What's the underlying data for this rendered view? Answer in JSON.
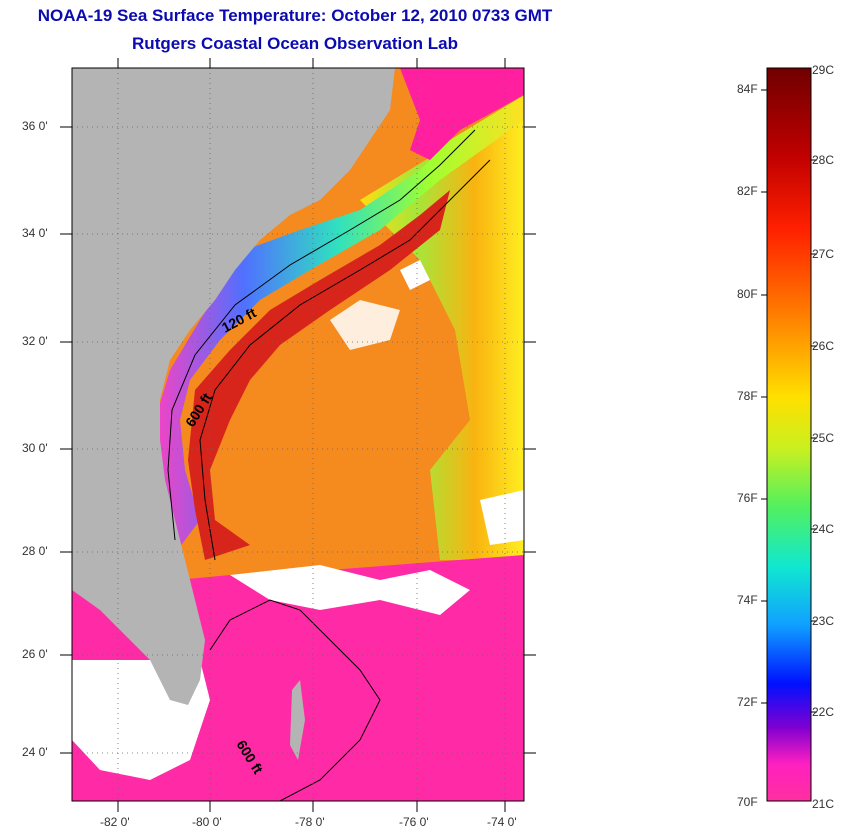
{
  "title": {
    "line1": "NOAA-19 Sea Surface Temperature:  October 12, 2010 0733 GMT",
    "line2": "Rutgers Coastal Ocean Observation Lab"
  },
  "map": {
    "lat_labels": [
      "36 0'",
      "34 0'",
      "32 0'",
      "30 0'",
      "28 0'",
      "26 0'",
      "24 0'"
    ],
    "lon_labels": [
      "-82 0'",
      "-80 0'",
      "-78 0'",
      "-76 0'",
      "-74 0'"
    ],
    "contour_labels": [
      "120 ft",
      "600 ft",
      "600 ft"
    ],
    "colors": {
      "land": "#b4b4b4",
      "cloud": "#ffffff",
      "cold": "#ff1f9f",
      "gulf_stream": "#e8281a",
      "warm": "#f77a18"
    }
  },
  "colorbar": {
    "fahrenheit_labels": [
      "84F",
      "82F",
      "80F",
      "78F",
      "76F",
      "74F",
      "72F",
      "70F"
    ],
    "celsius_labels": [
      "29C",
      "28C",
      "27C",
      "26C",
      "25C",
      "24C",
      "23C",
      "22C",
      "21C"
    ]
  }
}
